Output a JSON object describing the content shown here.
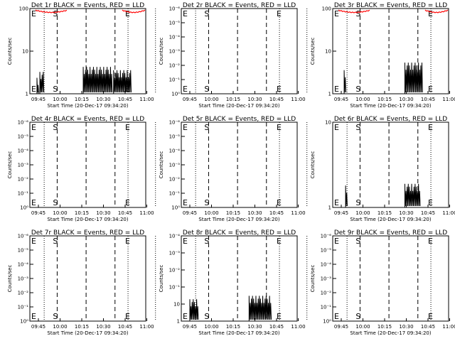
{
  "figure": {
    "background": "#ffffff",
    "ink": "#000000",
    "lld_color": "#ff0000"
  },
  "chart_data": [
    {
      "type": "line",
      "title": "Det 1r BLACK = Events, RED = LLD",
      "xlabel": "Start Time (20-Dec-17 09:34:20)",
      "ylabel": "Counts/sec",
      "x_ticks": [
        "09:45",
        "10:00",
        "10:15",
        "10:30",
        "10:45",
        "11:00"
      ],
      "y_scale": "log",
      "y_ticks": [
        "1",
        "10",
        "100"
      ],
      "ylim": [
        1,
        100
      ],
      "markers": [
        "S",
        "E"
      ],
      "lld_trace": true,
      "events": [
        {
          "start": "09:44",
          "end": "09:45",
          "level": 1.5
        },
        {
          "start": "09:46",
          "end": "09:49",
          "level": 1.8
        },
        {
          "start": "10:16",
          "end": "10:36",
          "level": 2.1
        },
        {
          "start": "10:37",
          "end": "10:49",
          "level": 1.9
        }
      ]
    },
    {
      "type": "line",
      "title": "Det 2r BLACK = Events, RED = LLD",
      "xlabel": "Start Time (20-Dec-17 09:34:20)",
      "ylabel": "Counts/sec",
      "x_ticks": [
        "09:45",
        "10:00",
        "10:15",
        "10:30",
        "10:45",
        "11:00"
      ],
      "y_scale": "log",
      "y_ticks": [
        "10⁰",
        "10⁻¹",
        "10⁻²",
        "10⁻³",
        "10⁻⁴",
        "10⁻⁵",
        "10⁻⁶"
      ],
      "ylim": [
        1,
        1e-06
      ],
      "markers": [
        "S",
        "E"
      ],
      "lld_trace": false,
      "events": []
    },
    {
      "type": "line",
      "title": "Det 3r BLACK = Events, RED = LLD",
      "xlabel": "Start Time (20-Dec-17 09:34:20)",
      "ylabel": "Counts/sec",
      "x_ticks": [
        "09:45",
        "10:00",
        "10:15",
        "10:30",
        "10:45",
        "11:00"
      ],
      "y_scale": "log",
      "y_ticks": [
        "1",
        "10",
        "100"
      ],
      "ylim": [
        1,
        100
      ],
      "markers": [
        "S",
        "E"
      ],
      "lld_trace": true,
      "events": [
        {
          "start": "09:47",
          "end": "09:48",
          "level": 1.9
        },
        {
          "start": "10:29",
          "end": "10:41",
          "level": 2.4
        }
      ]
    },
    {
      "type": "line",
      "title": "Det 4r BLACK = Events, RED = LLD",
      "xlabel": "Start Time (20-Dec-17 09:34:20)",
      "ylabel": "Counts/sec",
      "x_ticks": [
        "09:45",
        "10:00",
        "10:15",
        "10:30",
        "10:45",
        "11:00"
      ],
      "y_scale": "log",
      "y_ticks": [
        "10⁰",
        "10⁻¹",
        "10⁻²",
        "10⁻³",
        "10⁻⁴",
        "10⁻⁵",
        "10⁻⁶"
      ],
      "ylim": [
        1,
        1e-06
      ],
      "markers": [
        "S",
        "E"
      ],
      "lld_trace": false,
      "events": []
    },
    {
      "type": "line",
      "title": "Det 5r BLACK = Events, RED = LLD",
      "xlabel": "Start Time (20-Dec-17 09:34:20)",
      "ylabel": "Counts/sec",
      "x_ticks": [
        "09:45",
        "10:00",
        "10:15",
        "10:30",
        "10:45",
        "11:00"
      ],
      "y_scale": "log",
      "y_ticks": [
        "10⁰",
        "10⁻¹",
        "10⁻²",
        "10⁻³",
        "10⁻⁴",
        "10⁻⁵",
        "10⁻⁶"
      ],
      "ylim": [
        1,
        1e-06
      ],
      "markers": [
        "S",
        "E"
      ],
      "lld_trace": false,
      "events": []
    },
    {
      "type": "line",
      "title": "Det 6r BLACK = Events, RED = LLD",
      "xlabel": "Start Time (20-Dec-17 09:34:20)",
      "ylabel": "Counts/sec",
      "x_ticks": [
        "09:45",
        "10:00",
        "10:15",
        "10:30",
        "10:45",
        "11:00"
      ],
      "y_scale": "log",
      "y_ticks": [
        "1",
        "10"
      ],
      "ylim": [
        1,
        10
      ],
      "markers": [
        "S",
        "E"
      ],
      "lld_trace": false,
      "events": [
        {
          "start": "09:48",
          "end": "09:49",
          "level": 1.8
        },
        {
          "start": "10:29",
          "end": "10:40",
          "level": 1.9
        }
      ]
    },
    {
      "type": "line",
      "title": "Det 7r BLACK = Events, RED = LLD",
      "xlabel": "Start Time (20-Dec-17 09:34:20)",
      "ylabel": "Counts/sec",
      "x_ticks": [
        "09:45",
        "10:00",
        "10:15",
        "10:30",
        "10:45",
        "11:00"
      ],
      "y_scale": "log",
      "y_ticks": [
        "10⁰",
        "10⁻¹",
        "10⁻²",
        "10⁻³",
        "10⁻⁴",
        "10⁻⁵",
        "10⁻⁶"
      ],
      "ylim": [
        1,
        1e-06
      ],
      "markers": [
        "S",
        "E"
      ],
      "lld_trace": false,
      "events": []
    },
    {
      "type": "line",
      "title": "Det 8r BLACK = Events, RED = LLD",
      "xlabel": "Start Time (20-Dec-17 09:34:20)",
      "ylabel": "Counts/sec",
      "x_ticks": [
        "09:45",
        "10:00",
        "10:15",
        "10:30",
        "10:45",
        "11:00"
      ],
      "y_scale": "log",
      "y_ticks": [
        "1",
        "10",
        "10⁻¹",
        "10⁻²",
        "10⁻³",
        "10⁻⁴"
      ],
      "ylim": [
        1,
        0.0001
      ],
      "markers": [
        "S",
        "E"
      ],
      "lld_trace": false,
      "events": [
        {
          "start": "09:45",
          "end": "09:51",
          "level": 1.8
        },
        {
          "start": "10:26",
          "end": "10:41",
          "level": 2.0
        }
      ]
    },
    {
      "type": "line",
      "title": "Det 9r BLACK = Events, RED = LLD",
      "xlabel": "Start Time (20-Dec-17 09:34:20)",
      "ylabel": "Counts/sec",
      "x_ticks": [
        "09:45",
        "10:00",
        "10:15",
        "10:30",
        "10:45",
        "11:00"
      ],
      "y_scale": "log",
      "y_ticks": [
        "10⁰",
        "10⁻¹",
        "10⁻²",
        "10⁻³",
        "10⁻⁴",
        "10⁻⁵",
        "10⁻⁶"
      ],
      "ylim": [
        1,
        1e-06
      ],
      "markers": [
        "S",
        "E"
      ],
      "lld_trace": false,
      "events": []
    }
  ]
}
